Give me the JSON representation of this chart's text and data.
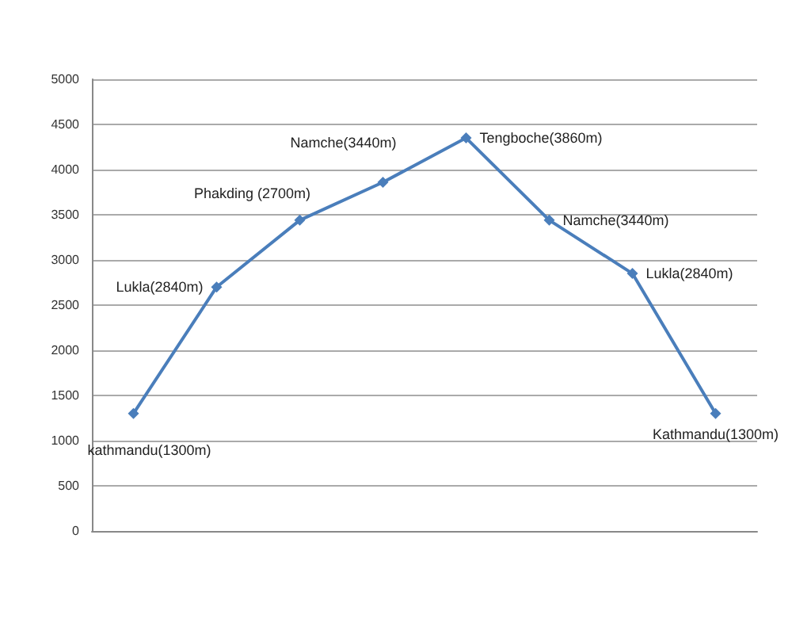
{
  "chart_data": {
    "type": "line",
    "categories": [
      null,
      null,
      null,
      null,
      null,
      null,
      null,
      null
    ],
    "series": [
      {
        "color": "#4a7ebb",
        "values": [
          1300,
          2700,
          3440,
          3860,
          4350,
          3440,
          2850,
          1300
        ]
      }
    ],
    "annotations": [
      "kathmandu(1300m)",
      "Lukla(2840m)",
      "Phakding (2700m)",
      "Namche(3440m)",
      "Tengboche(3860m)",
      "Namche(3440m)",
      "Lukla(2840m)",
      "Kathmandu(1300m)"
    ],
    "ylim": [
      0,
      5000
    ],
    "yticks": [
      0,
      500,
      1000,
      1500,
      2000,
      2500,
      3000,
      3500,
      4000,
      4500,
      5000
    ],
    "grid": "y",
    "marker": "diamond",
    "line_style": "solid"
  }
}
